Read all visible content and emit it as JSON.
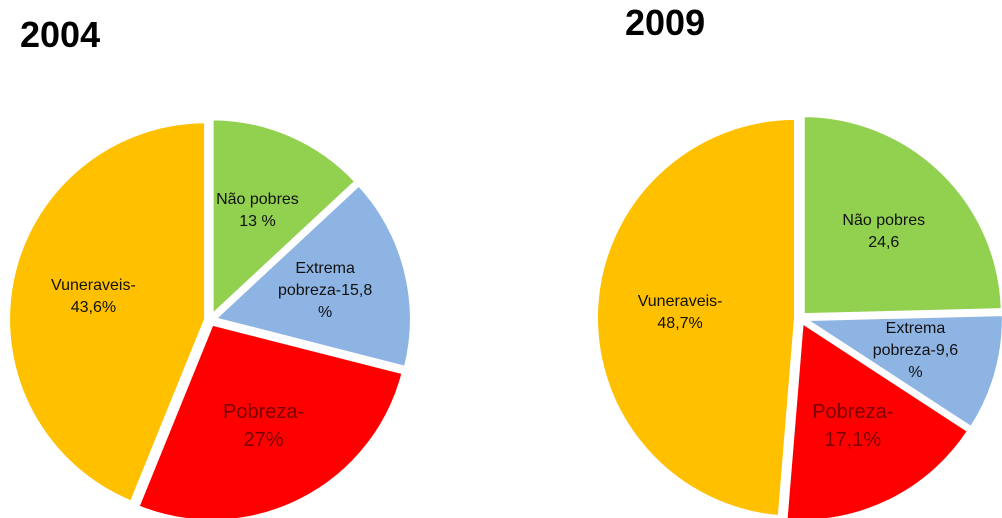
{
  "chart_data": [
    {
      "type": "pie",
      "title": "2004",
      "values": [
        13,
        15.8,
        27,
        43.6
      ],
      "value_labels": [
        "Não pobres 13 %",
        "Extrema pobreza-15,8 %",
        "Pobreza-27%",
        "Vuneraveis-43,6%"
      ],
      "colors": [
        "#92d050",
        "#8eb4e3",
        "#ff0000",
        "#ffc000"
      ]
    },
    {
      "type": "pie",
      "title": "2009",
      "values": [
        24.6,
        9.6,
        17.1,
        48.7
      ],
      "value_labels": [
        "Não pobres 24,6",
        "Extrema pobreza-9,6 %",
        "Pobreza-17,1%",
        "Vuneraveis-48,7%"
      ],
      "colors": [
        "#92d050",
        "#8eb4e3",
        "#ff0000",
        "#ffc000"
      ]
    }
  ]
}
